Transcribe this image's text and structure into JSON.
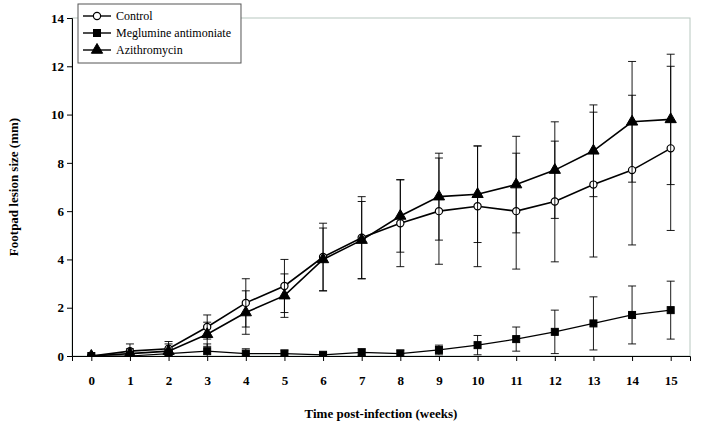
{
  "chart_data": {
    "type": "line",
    "x_label": "Time post-infection (weeks)",
    "y_label": "Footpad lesion size (mm)",
    "x": [
      0,
      1,
      2,
      3,
      4,
      5,
      6,
      7,
      8,
      9,
      10,
      11,
      12,
      13,
      14,
      15
    ],
    "xlim": [
      -0.5,
      15.5
    ],
    "xticks": [
      0,
      1,
      2,
      3,
      4,
      5,
      6,
      7,
      8,
      9,
      10,
      11,
      12,
      13,
      14,
      15
    ],
    "ylim": [
      0,
      14
    ],
    "yticks": [
      0,
      2,
      4,
      6,
      8,
      10,
      12,
      14
    ],
    "legend": "top-left",
    "series": [
      {
        "name": "Control",
        "color": "#000000",
        "marker": "open-circle",
        "line_style": "solid",
        "values": [
          0,
          0.2,
          0.3,
          1.2,
          2.2,
          2.9,
          4.1,
          4.9,
          5.5,
          6.0,
          6.2,
          6.0,
          6.4,
          7.1,
          7.7,
          8.6
        ],
        "errors": [
          0,
          0.3,
          0.3,
          0.5,
          1.0,
          1.1,
          1.4,
          1.7,
          1.8,
          2.2,
          2.5,
          2.4,
          2.5,
          3.0,
          3.1,
          3.4
        ]
      },
      {
        "name": "Meglumine antimoniate",
        "color": "#000000",
        "marker": "square",
        "line_style": "solid",
        "values": [
          0,
          0,
          0.1,
          0.2,
          0.1,
          0.1,
          0.05,
          0.15,
          0.1,
          0.25,
          0.45,
          0.7,
          1.0,
          1.35,
          1.7,
          1.9
        ],
        "errors": [
          0,
          0.1,
          0.1,
          0.3,
          0.2,
          0.15,
          0.1,
          0.15,
          0.15,
          0.2,
          0.4,
          0.5,
          0.9,
          1.1,
          1.2,
          1.2
        ]
      },
      {
        "name": "Azithromycin",
        "color": "#000000",
        "marker": "triangle",
        "line_style": "solid",
        "values": [
          0,
          0.1,
          0.2,
          0.9,
          1.8,
          2.5,
          4.0,
          4.8,
          5.8,
          6.6,
          6.7,
          7.1,
          7.7,
          8.5,
          9.7,
          9.8
        ],
        "errors": [
          0,
          0.2,
          0.3,
          0.5,
          0.9,
          0.9,
          1.3,
          1.6,
          1.5,
          1.8,
          2.0,
          2.0,
          2.0,
          1.9,
          2.5,
          2.7
        ]
      }
    ]
  }
}
